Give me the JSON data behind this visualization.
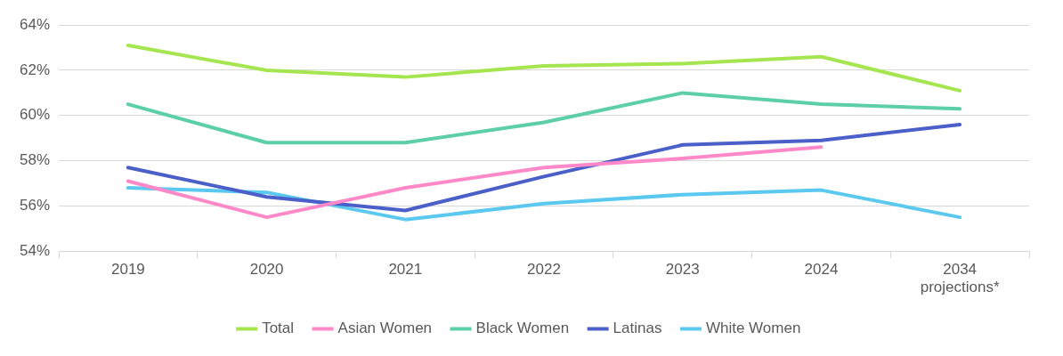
{
  "chart_data": {
    "type": "line",
    "categories": [
      "2019",
      "2020",
      "2021",
      "2022",
      "2023",
      "2024",
      "2034\nprojections*"
    ],
    "series": [
      {
        "name": "Total",
        "color": "#a5e550",
        "values": [
          63.1,
          62.0,
          61.7,
          62.2,
          62.3,
          62.6,
          61.1
        ]
      },
      {
        "name": "Asian Women",
        "color": "#ff88c8",
        "values": [
          57.1,
          55.5,
          56.8,
          57.7,
          58.1,
          58.6,
          null
        ]
      },
      {
        "name": "Black Women",
        "color": "#5ccfa8",
        "values": [
          60.5,
          58.8,
          58.8,
          59.7,
          61.0,
          60.5,
          60.3
        ]
      },
      {
        "name": "Latinas",
        "color": "#4a5fc8",
        "values": [
          57.7,
          56.4,
          55.8,
          57.3,
          58.7,
          58.9,
          59.6
        ]
      },
      {
        "name": "White Women",
        "color": "#5bc8f0",
        "values": [
          56.8,
          56.6,
          55.4,
          56.1,
          56.5,
          56.7,
          55.5
        ]
      }
    ],
    "ylim": [
      54,
      64
    ],
    "yticks": [
      {
        "value": 54,
        "label": "54%"
      },
      {
        "value": 56,
        "label": "56%"
      },
      {
        "value": 58,
        "label": "58%"
      },
      {
        "value": 60,
        "label": "60%"
      },
      {
        "value": 62,
        "label": "62%"
      },
      {
        "value": 64,
        "label": "64%"
      }
    ],
    "grid": "y",
    "legend": "bottom",
    "marker": "none",
    "line_style": "solid"
  }
}
